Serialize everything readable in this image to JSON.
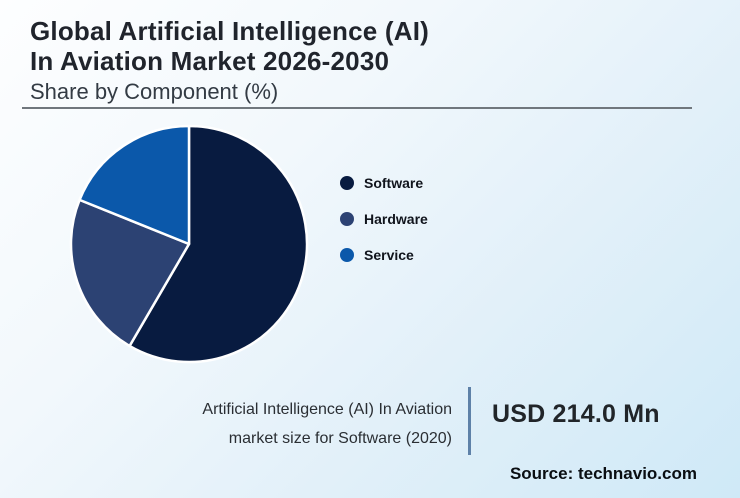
{
  "header": {
    "title_line1": "Global Artificial Intelligence (AI)",
    "title_line2": "In Aviation Market 2026-2030",
    "subtitle": "Share by Component (%)"
  },
  "chart_data": {
    "type": "pie",
    "title": "Global Artificial Intelligence (AI) In Aviation Market 2026-2030 — Share by Component (%)",
    "categories": [
      "Software",
      "Hardware",
      "Service"
    ],
    "values": [
      58.4,
      22.7,
      18.9
    ],
    "unit": "%",
    "colors": [
      "#081b40",
      "#2c4273",
      "#0b58aa"
    ],
    "start_angle_deg": 0,
    "direction": "clockwise",
    "legend_position": "right",
    "slice_border_color": "#ffffff"
  },
  "stat": {
    "label_line1": "Artificial Intelligence (AI) In Aviation",
    "label_line2": "market size for Software (2020)",
    "value": "USD 214.0 Mn"
  },
  "source": {
    "text": "Source: technavio.com"
  }
}
